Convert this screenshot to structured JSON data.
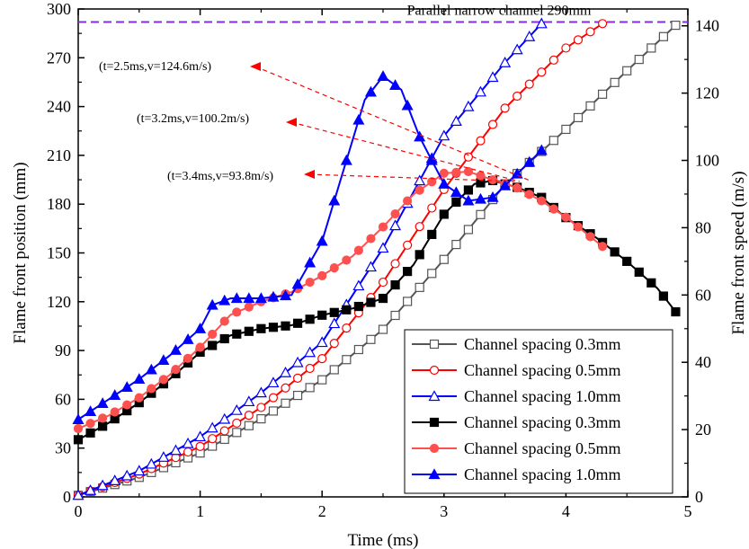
{
  "chart_data": {
    "type": "line",
    "xlabel": "Time (ms)",
    "ylabel_left": "Flame front position (mm)",
    "ylabel_right": "Flame front speed (m/s)",
    "xlim": [
      0,
      5
    ],
    "ylim_left": [
      0,
      300
    ],
    "ylim_right": [
      0,
      145
    ],
    "x_ticks": [
      "0",
      "1",
      "2",
      "3",
      "4",
      "5"
    ],
    "y_left_ticks": [
      "0",
      "30",
      "60",
      "90",
      "120",
      "150",
      "180",
      "210",
      "240",
      "270",
      "300"
    ],
    "y_right_ticks": [
      "0",
      "20",
      "40",
      "60",
      "80",
      "100",
      "120",
      "140"
    ],
    "grid": false,
    "legend_position": "bottom-right",
    "reference_line": {
      "label": "Parallel narrow channel 290mm",
      "y_left": 292,
      "color": "#8a2be2"
    },
    "annotations": [
      {
        "text": "(t=2.5ms,v=124.6m/s)",
        "target": {
          "x": 3.72,
          "axis": "left",
          "y": 194
        }
      },
      {
        "text": "(t=3.2ms,v=100.2m/s)",
        "target": {
          "x": 3.62,
          "axis": "left",
          "y": 194
        }
      },
      {
        "text": "(t=3.4ms,v=93.8m/s)",
        "target": {
          "x": 3.58,
          "axis": "left",
          "y": 194
        }
      }
    ],
    "series": [
      {
        "name": "Channel spacing 0.3mm",
        "axis": "left",
        "color": "#555555",
        "marker": "square",
        "fill": false,
        "x": [
          0,
          0.5,
          1.0,
          1.5,
          2.0,
          2.5,
          3.0,
          3.5,
          4.0,
          4.5,
          4.9
        ],
        "y": [
          1,
          12,
          27,
          48,
          72,
          103,
          146,
          192,
          226,
          262,
          290
        ]
      },
      {
        "name": "Channel spacing 0.5mm",
        "axis": "left",
        "color": "#ff0000",
        "marker": "circle",
        "fill": false,
        "x": [
          0,
          0.5,
          1.0,
          1.5,
          2.0,
          2.5,
          3.0,
          3.5,
          4.0,
          4.3
        ],
        "y": [
          1,
          14,
          31,
          55,
          85,
          132,
          189,
          239,
          276,
          291
        ]
      },
      {
        "name": "Channel spacing 1.0mm",
        "axis": "left",
        "color": "#0000ff",
        "marker": "triangle",
        "fill": false,
        "x": [
          0,
          0.5,
          1.0,
          1.5,
          2.0,
          2.5,
          3.0,
          3.5,
          3.8
        ],
        "y": [
          1,
          16,
          37,
          64,
          95,
          153,
          222,
          267,
          291
        ]
      },
      {
        "name": "Channel spacing 0.3mm",
        "axis": "right",
        "color": "#000000",
        "marker": "square",
        "fill": true,
        "x": [
          0,
          0.25,
          0.5,
          0.75,
          1.0,
          1.25,
          1.5,
          1.75,
          2.0,
          2.25,
          2.5,
          2.75,
          3.0,
          3.25,
          3.4,
          3.6,
          3.8,
          4.0,
          4.25,
          4.5,
          4.75,
          4.9
        ],
        "y": [
          17,
          22,
          28,
          35,
          43,
          48,
          50,
          51,
          54,
          56,
          59,
          69,
          84,
          93,
          94,
          92,
          89,
          83,
          77,
          70,
          62,
          55
        ]
      },
      {
        "name": "Channel spacing 0.5mm",
        "axis": "left",
        "color": "#ff5050",
        "marker": "circle",
        "fill": true,
        "x": [
          0,
          0.25,
          0.5,
          0.75,
          1.0,
          1.25,
          1.5,
          1.75,
          2.0,
          2.25,
          2.5,
          2.75,
          3.0,
          3.2,
          3.4,
          3.6,
          3.8,
          4.0,
          4.3
        ],
        "y": [
          42,
          50,
          61,
          75,
          92,
          112,
          120,
          126,
          136,
          148,
          166,
          186,
          199,
          200,
          195,
          190,
          182,
          172,
          154
        ]
      },
      {
        "name": "Channel spacing 1.0mm",
        "axis": "right",
        "color": "#0000ff",
        "marker": "triangle",
        "fill": true,
        "x": [
          0,
          0.25,
          0.5,
          0.75,
          1.0,
          1.1,
          1.25,
          1.5,
          1.75,
          2.0,
          2.2,
          2.35,
          2.5,
          2.65,
          2.8,
          3.0,
          3.2,
          3.4,
          3.6,
          3.8
        ],
        "y": [
          23,
          29,
          35,
          42,
          50,
          57,
          59,
          59,
          60,
          76,
          100,
          118,
          125,
          121,
          107,
          93,
          88,
          89,
          96,
          103
        ]
      }
    ]
  }
}
